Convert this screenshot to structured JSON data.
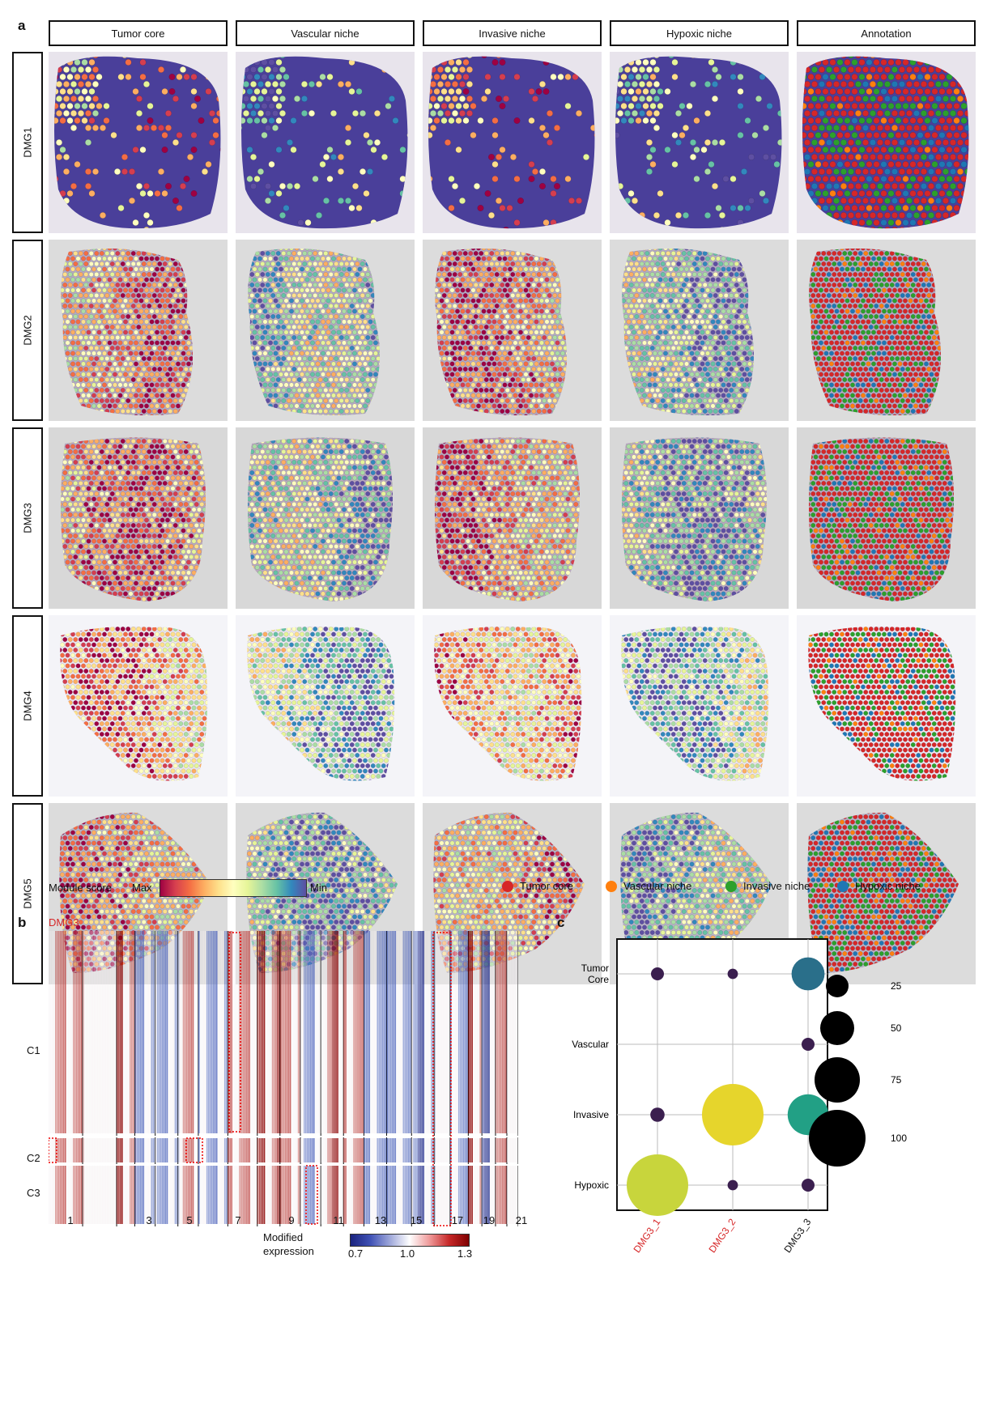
{
  "panel_a": {
    "letter": "a",
    "columns": [
      "Tumor core",
      "Vascular niche",
      "Invasive niche",
      "Hypoxic niche",
      "Annotation"
    ],
    "rows": [
      "DMG1",
      "DMG2",
      "DMG3",
      "DMG4",
      "DMG5"
    ],
    "module_score_label": "Module score",
    "max_label": "Max",
    "min_label": "Min",
    "legend": [
      {
        "label": "Tumor core",
        "color": "#d62728"
      },
      {
        "label": "Vascular niche",
        "color": "#ff7f0e"
      },
      {
        "label": "Invasive niche",
        "color": "#2ca02c"
      },
      {
        "label": "Hypoxic niche",
        "color": "#1f77b4"
      }
    ]
  },
  "panel_b": {
    "letter": "b",
    "sample": "DMG3",
    "clusters": [
      "C1",
      "C2",
      "C3"
    ],
    "chromosome_labels": [
      "1",
      "3",
      "5",
      "7",
      "9",
      "11",
      "13",
      "15",
      "17",
      "19",
      "21"
    ],
    "colorbar_title": "Modified expression",
    "colorbar_ticks": [
      "0.7",
      "1.0",
      "1.3"
    ]
  },
  "chart_data": {
    "type": "scatter",
    "letter": "c",
    "x_categories": [
      "DMG3_1",
      "DMG3_2",
      "DMG3_3"
    ],
    "x_label_colors": [
      "#d62728",
      "#d62728",
      "#111111"
    ],
    "y_categories": [
      "Tumor Core",
      "Vascular",
      "Invasive",
      "Hypoxic"
    ],
    "y_display": [
      "Tumor\nCore",
      "Vascular",
      "Invasive",
      "Hypoxic"
    ],
    "points": [
      {
        "x": "DMG3_1",
        "y": "Tumor Core",
        "size": 5,
        "color": "#3b1f4f"
      },
      {
        "x": "DMG3_2",
        "y": "Tumor Core",
        "size": 3,
        "color": "#3b1f4f"
      },
      {
        "x": "DMG3_3",
        "y": "Tumor Core",
        "size": 45,
        "color": "#2a6f8a"
      },
      {
        "x": "DMG3_3",
        "y": "Vascular",
        "size": 5,
        "color": "#3b1f4f"
      },
      {
        "x": "DMG3_1",
        "y": "Invasive",
        "size": 6,
        "color": "#3b1f4f"
      },
      {
        "x": "DMG3_2",
        "y": "Invasive",
        "size": 100,
        "color": "#e6d52c"
      },
      {
        "x": "DMG3_3",
        "y": "Invasive",
        "size": 60,
        "color": "#22a085"
      },
      {
        "x": "DMG3_1",
        "y": "Hypoxic",
        "size": 100,
        "color": "#c8d53c"
      },
      {
        "x": "DMG3_2",
        "y": "Hypoxic",
        "size": 3,
        "color": "#3b1f4f"
      },
      {
        "x": "DMG3_3",
        "y": "Hypoxic",
        "size": 5,
        "color": "#3b1f4f"
      }
    ],
    "size_legend": [
      25,
      50,
      75,
      100
    ]
  }
}
